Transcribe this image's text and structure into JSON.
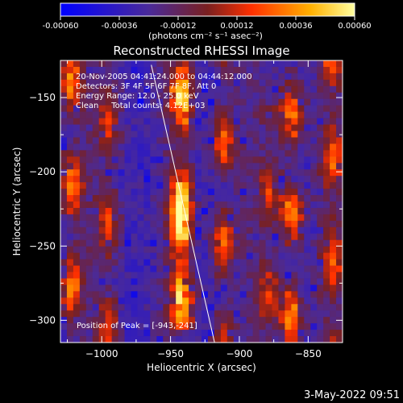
{
  "chart_data": {
    "type": "heatmap",
    "title": "Reconstructed RHESSI Image",
    "xlabel": "Heliocentric X (arcsec)",
    "ylabel": "Heliocentric Y (arcsec)",
    "xlim": [
      -1030,
      -825
    ],
    "ylim": [
      -315,
      -125
    ],
    "x_ticks": [
      -1000,
      -950,
      -900,
      -850
    ],
    "x_tick_labels": [
      "−1000",
      "−950",
      "−900",
      "−850"
    ],
    "y_ticks": [
      -150,
      -200,
      -250,
      -300
    ],
    "y_tick_labels": [
      "−150",
      "−200",
      "−250",
      "−300"
    ],
    "colorbar": {
      "range": [
        -0.0006,
        0.0006
      ],
      "ticks": [
        -0.0006,
        -0.00036,
        -0.00012,
        0.00012,
        0.00036,
        0.0006
      ],
      "tick_labels": [
        "-0.00060",
        "-0.00036",
        "-0.00012",
        "0.00012",
        "0.00036",
        "0.00060"
      ],
      "unit_label": "(photons cm⁻² s⁻¹ asec⁻²)",
      "colors": [
        "#0000ff",
        "#5a2a8a",
        "#9a2a2a",
        "#ff4000",
        "#ffa000",
        "#ffff80"
      ]
    },
    "annotations": [
      "20-Nov-2005 04:41:24.000 to 04:44:12.000",
      "Detectors: 3F 4F 5F 6F 7F 8F, Att 0",
      "Energy Range: 12.0 - 25.0 keV",
      "Clean     Total counts: 4.12E+03",
      "Position of Peak = [-943,-241]"
    ],
    "peak": {
      "x": -943,
      "y": -241
    },
    "limb_line": [
      [
        -964,
        -128
      ],
      [
        -918,
        -315
      ]
    ],
    "bright_ridges": [
      {
        "x": -1022,
        "y_range": [
          -315,
          -140
        ],
        "strength": 0.8
      },
      {
        "x": -995,
        "y_range": [
          -315,
          -125
        ],
        "strength": 0.5
      },
      {
        "x": -942,
        "y_range": [
          -290,
          -140
        ],
        "strength": 1.0
      },
      {
        "x": -912,
        "y_range": [
          -315,
          -125
        ],
        "strength": 0.7
      },
      {
        "x": -878,
        "y_range": [
          -300,
          -170
        ],
        "strength": 0.5
      },
      {
        "x": -862,
        "y_range": [
          -315,
          -125
        ],
        "strength": 0.9
      },
      {
        "x": -832,
        "y_range": [
          -315,
          -130
        ],
        "strength": 0.6
      }
    ]
  },
  "footer_date": "3-May-2022 09:51"
}
